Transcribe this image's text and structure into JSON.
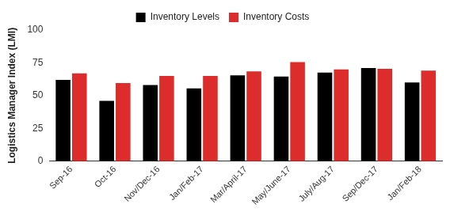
{
  "chart_data": {
    "type": "bar",
    "categories": [
      "Sep-16",
      "Oct-16",
      "Nov/Dec-16",
      "Jan/Feb-17",
      "Mar/April-17",
      "May/June-17",
      "July/Aug-17",
      "Sep/Dec-17",
      "Jan/Feb-18"
    ],
    "series": [
      {
        "name": "Inventory Levels",
        "color": "#000000",
        "values": [
          62,
          46,
          58,
          55.5,
          65.5,
          64.5,
          67.5,
          71,
          60
        ]
      },
      {
        "name": "Inventory Costs",
        "color": "#dd2c2c",
        "values": [
          67,
          59.5,
          65,
          65,
          68.5,
          75.5,
          70,
          70.5,
          69
        ]
      }
    ],
    "y_label": "Logistics Manager Index (LMI)",
    "ylim": [
      0,
      100
    ],
    "yticks": [
      0,
      25,
      50,
      75,
      100
    ],
    "grid": false,
    "legend": "top"
  }
}
